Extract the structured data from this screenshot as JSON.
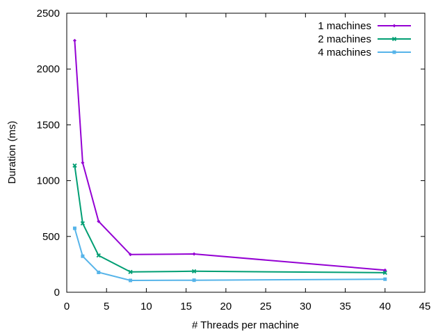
{
  "chart_data": {
    "type": "line",
    "title": "",
    "xlabel": "# Threads per machine",
    "ylabel": "Duration (ms)",
    "xlim": [
      0,
      45
    ],
    "ylim": [
      0,
      2500
    ],
    "xticks": [
      0,
      5,
      10,
      15,
      20,
      25,
      30,
      35,
      40,
      45
    ],
    "yticks": [
      0,
      500,
      1000,
      1500,
      2000,
      2500
    ],
    "grid": false,
    "legend_position": "top-right",
    "x": [
      1,
      2,
      4,
      8,
      16,
      40
    ],
    "series": [
      {
        "name": "1 machines",
        "color": "#9400d3",
        "marker": "diamond",
        "values": [
          2255,
          1160,
          635,
          338,
          343,
          198
        ]
      },
      {
        "name": "2 machines",
        "color": "#009e73",
        "marker": "x",
        "values": [
          1135,
          617,
          330,
          182,
          188,
          175
        ]
      },
      {
        "name": "4 machines",
        "color": "#56b4e9",
        "marker": "square",
        "values": [
          573,
          323,
          178,
          106,
          108,
          117
        ]
      }
    ]
  }
}
